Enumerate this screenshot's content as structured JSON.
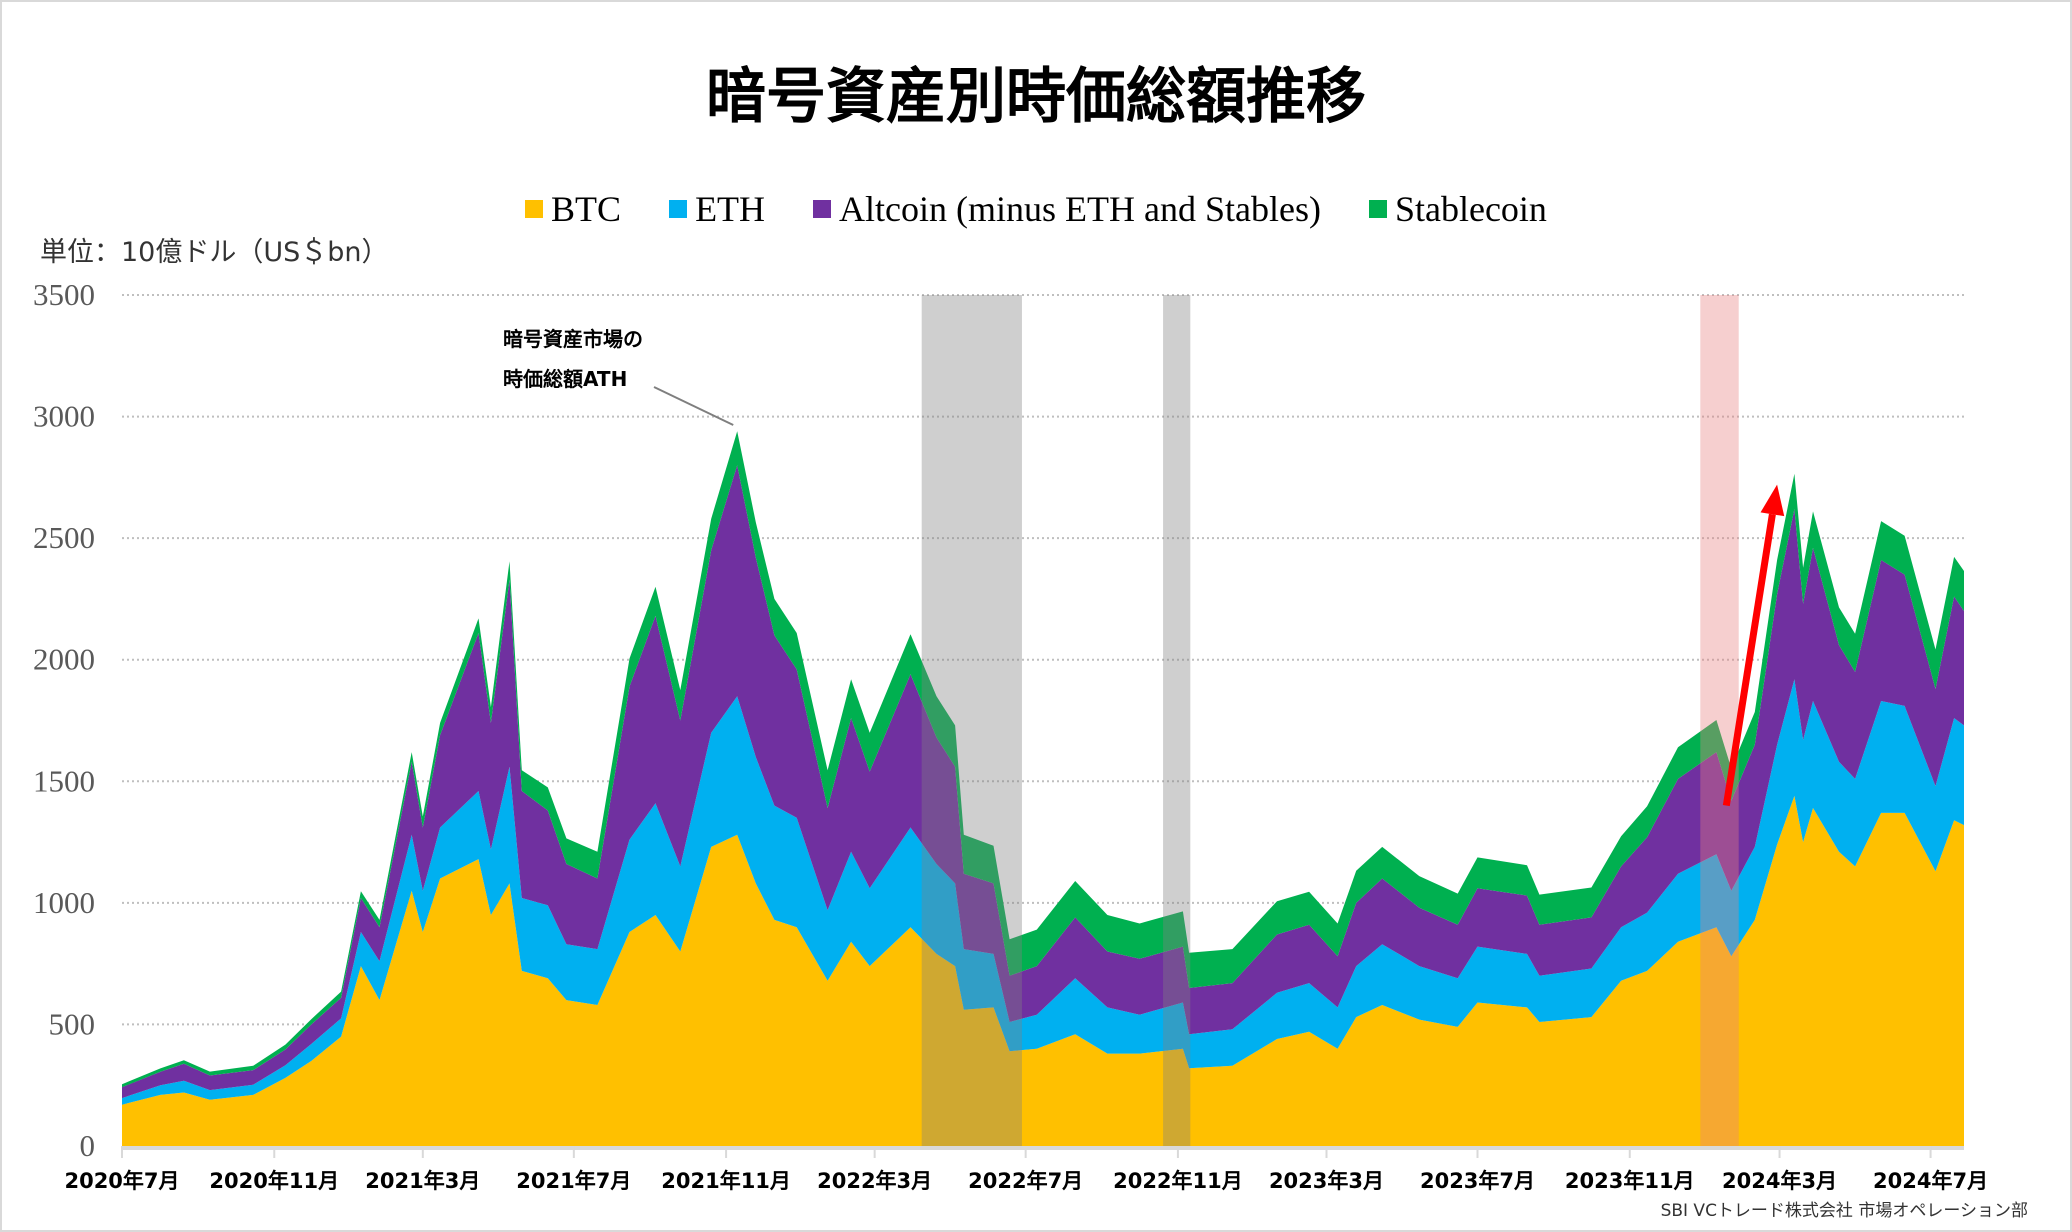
{
  "title": "暗号資産別時価総額推移",
  "unit_label": "単位：10億ドル（US＄bn）",
  "credit": "SBI VCトレード株式会社 市場オペレーション部",
  "annotation": {
    "line1": "暗号資産市場の",
    "line2": "時価総額ATH",
    "date": "2021-11-10"
  },
  "chart_data": {
    "type": "area",
    "stacked": true,
    "title": "暗号資産別時価総額推移",
    "ylabel": "単位：10億ドル（US＄bn）",
    "ylim": [
      0,
      3500
    ],
    "yticks": [
      "0",
      "500",
      "1000",
      "1500",
      "2000",
      "2500",
      "3000",
      "3500"
    ],
    "grid": true,
    "legend_position": "top",
    "xlim": [
      "2020-07-01",
      "2024-07-28"
    ],
    "xticks": [
      {
        "date": "2020-07-01",
        "label": "2020年7月"
      },
      {
        "date": "2020-11-01",
        "label": "2020年11月"
      },
      {
        "date": "2021-03-01",
        "label": "2021年3月"
      },
      {
        "date": "2021-07-01",
        "label": "2021年7月"
      },
      {
        "date": "2021-11-01",
        "label": "2021年11月"
      },
      {
        "date": "2022-03-01",
        "label": "2022年3月"
      },
      {
        "date": "2022-07-01",
        "label": "2022年7月"
      },
      {
        "date": "2022-11-01",
        "label": "2022年11月"
      },
      {
        "date": "2023-03-01",
        "label": "2023年3月"
      },
      {
        "date": "2023-07-01",
        "label": "2023年7月"
      },
      {
        "date": "2023-11-01",
        "label": "2023年11月"
      },
      {
        "date": "2024-03-01",
        "label": "2024年3月"
      },
      {
        "date": "2024-07-01",
        "label": "2024年7月"
      }
    ],
    "x": [
      "2020-07-01",
      "2020-08-01",
      "2020-08-20",
      "2020-09-10",
      "2020-10-15",
      "2020-11-10",
      "2020-12-01",
      "2020-12-25",
      "2021-01-10",
      "2021-01-25",
      "2021-02-20",
      "2021-03-01",
      "2021-03-15",
      "2021-04-15",
      "2021-04-25",
      "2021-05-10",
      "2021-05-20",
      "2021-06-10",
      "2021-06-25",
      "2021-07-20",
      "2021-08-15",
      "2021-09-05",
      "2021-09-25",
      "2021-10-20",
      "2021-11-10",
      "2021-11-25",
      "2021-12-10",
      "2021-12-28",
      "2022-01-22",
      "2022-02-10",
      "2022-02-25",
      "2022-03-30",
      "2022-04-20",
      "2022-05-05",
      "2022-05-12",
      "2022-06-05",
      "2022-06-18",
      "2022-07-10",
      "2022-08-10",
      "2022-09-05",
      "2022-10-01",
      "2022-11-05",
      "2022-11-10",
      "2022-12-15",
      "2023-01-20",
      "2023-02-15",
      "2023-03-10",
      "2023-03-25",
      "2023-04-15",
      "2023-05-15",
      "2023-06-15",
      "2023-07-01",
      "2023-08-10",
      "2023-08-20",
      "2023-10-01",
      "2023-10-25",
      "2023-11-15",
      "2023-12-10",
      "2024-01-10",
      "2024-01-22",
      "2024-02-10",
      "2024-02-28",
      "2024-03-13",
      "2024-03-20",
      "2024-03-28",
      "2024-04-18",
      "2024-05-01",
      "2024-05-22",
      "2024-06-10",
      "2024-07-05",
      "2024-07-20",
      "2024-07-28"
    ],
    "series": [
      {
        "name": "BTC",
        "color": "#FFC000",
        "values": [
          170,
          210,
          220,
          190,
          210,
          280,
          350,
          450,
          740,
          600,
          1050,
          880,
          1100,
          1180,
          950,
          1080,
          720,
          690,
          600,
          580,
          880,
          950,
          800,
          1230,
          1280,
          1080,
          930,
          900,
          680,
          840,
          740,
          900,
          790,
          740,
          560,
          570,
          390,
          400,
          460,
          380,
          380,
          400,
          320,
          330,
          440,
          470,
          400,
          530,
          580,
          520,
          490,
          590,
          570,
          510,
          530,
          680,
          720,
          840,
          900,
          780,
          930,
          1240,
          1440,
          1250,
          1390,
          1210,
          1150,
          1370,
          1370,
          1130,
          1340,
          1320
        ]
      },
      {
        "name": "ETH",
        "color": "#00B0F0",
        "values": [
          27,
          40,
          48,
          40,
          42,
          52,
          70,
          75,
          140,
          160,
          230,
          170,
          210,
          280,
          270,
          480,
          300,
          300,
          230,
          230,
          380,
          460,
          350,
          470,
          570,
          520,
          470,
          450,
          290,
          370,
          320,
          410,
          370,
          340,
          250,
          220,
          120,
          140,
          230,
          190,
          160,
          190,
          140,
          150,
          190,
          200,
          170,
          210,
          250,
          220,
          200,
          230,
          220,
          190,
          200,
          220,
          240,
          280,
          300,
          270,
          300,
          410,
          480,
          420,
          440,
          370,
          360,
          460,
          440,
          350,
          420,
          410
        ]
      },
      {
        "name": "Altcoin (minus ETH and Stables)",
        "color": "#7030A0",
        "values": [
          45,
          55,
          70,
          60,
          60,
          65,
          80,
          85,
          140,
          140,
          300,
          260,
          380,
          650,
          520,
          770,
          440,
          390,
          330,
          290,
          630,
          770,
          600,
          750,
          950,
          820,
          700,
          610,
          420,
          550,
          480,
          630,
          520,
          480,
          310,
          290,
          190,
          200,
          250,
          230,
          230,
          230,
          190,
          190,
          240,
          240,
          210,
          260,
          270,
          240,
          220,
          240,
          240,
          210,
          210,
          250,
          310,
          390,
          420,
          370,
          420,
          620,
          700,
          560,
          630,
          480,
          440,
          580,
          540,
          400,
          500,
          470
        ]
      },
      {
        "name": "Stablecoin",
        "color": "#00B050",
        "values": [
          12,
          14,
          15,
          16,
          18,
          20,
          22,
          25,
          28,
          30,
          40,
          45,
          50,
          60,
          65,
          75,
          85,
          95,
          105,
          110,
          115,
          120,
          125,
          130,
          140,
          145,
          150,
          150,
          155,
          160,
          160,
          165,
          170,
          170,
          160,
          155,
          150,
          150,
          150,
          150,
          145,
          145,
          145,
          140,
          137,
          136,
          135,
          132,
          130,
          130,
          128,
          127,
          125,
          124,
          123,
          124,
          127,
          130,
          132,
          133,
          135,
          140,
          145,
          148,
          150,
          155,
          157,
          160,
          160,
          162,
          163,
          165
        ]
      }
    ],
    "highlight_bands": [
      {
        "start": "2022-04-08",
        "end": "2022-06-28",
        "color": "#808080"
      },
      {
        "start": "2022-10-20",
        "end": "2022-11-11",
        "color": "#808080"
      },
      {
        "start": "2023-12-28",
        "end": "2024-01-28",
        "color": "#E88080"
      }
    ],
    "arrow": {
      "from": {
        "date": "2024-01-18",
        "value": 1400
      },
      "to": {
        "date": "2024-02-28",
        "value": 2720
      },
      "color": "#FF0000"
    }
  }
}
